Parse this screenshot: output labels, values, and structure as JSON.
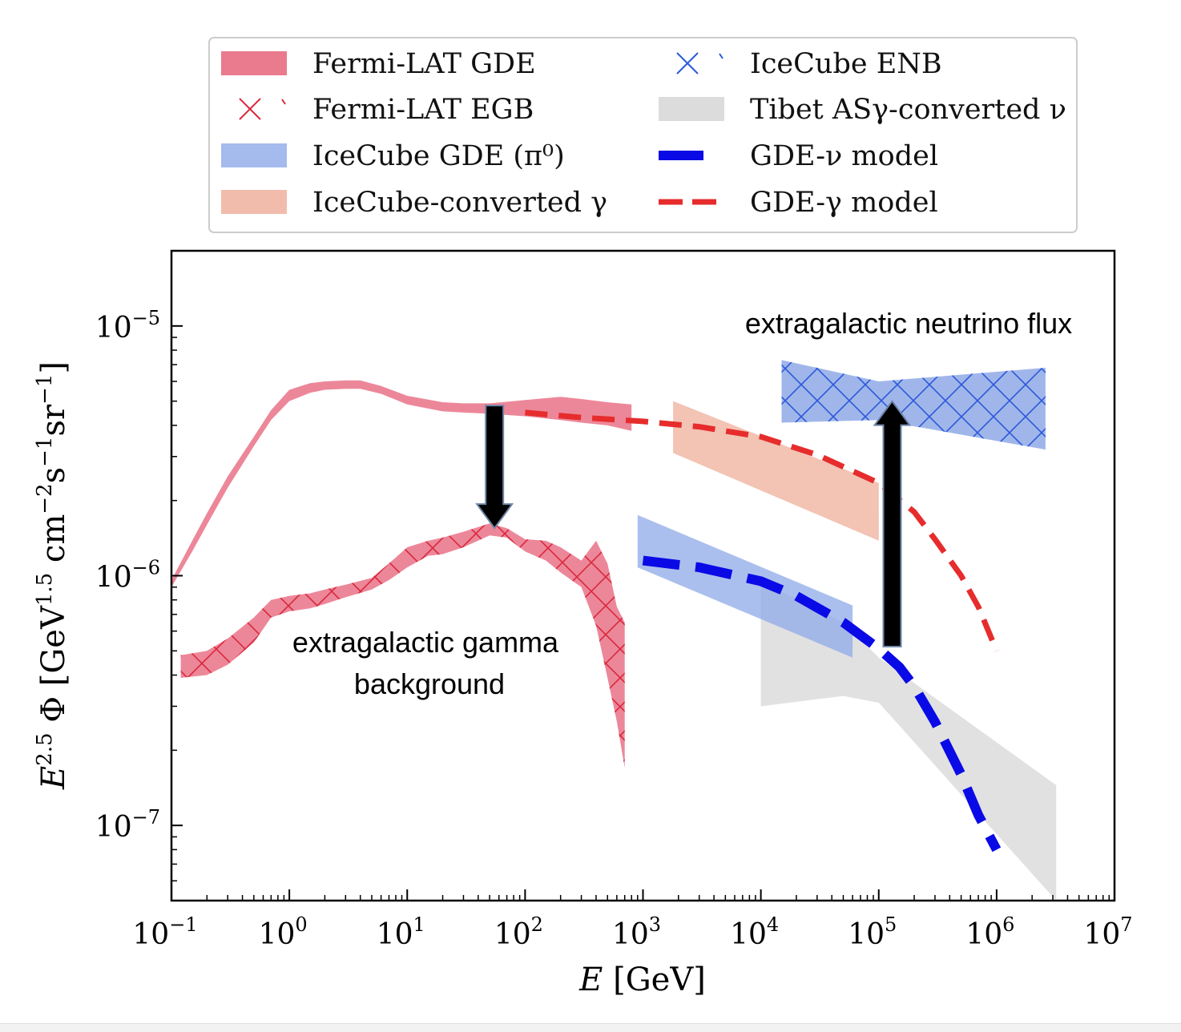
{
  "chart_data": {
    "type": "area",
    "xscale": "log",
    "yscale": "log",
    "xlim": [
      0.1,
      10000000
    ],
    "ylim": [
      5e-08,
      2e-05
    ],
    "xlabel": "E [GeV]",
    "ylabel": "E^{2.5} Φ [GeV^{1.5} cm^{-2} s^{-1} sr^{-1}]",
    "x_ticks": [
      {
        "base": "10",
        "exp": "−1"
      },
      {
        "base": "10",
        "exp": "0"
      },
      {
        "base": "10",
        "exp": "1"
      },
      {
        "base": "10",
        "exp": "2"
      },
      {
        "base": "10",
        "exp": "3"
      },
      {
        "base": "10",
        "exp": "4"
      },
      {
        "base": "10",
        "exp": "5"
      },
      {
        "base": "10",
        "exp": "6"
      },
      {
        "base": "10",
        "exp": "7"
      }
    ],
    "y_ticks": [
      {
        "base": "10",
        "exp": "−7"
      },
      {
        "base": "10",
        "exp": "−6"
      },
      {
        "base": "10",
        "exp": "−5"
      }
    ],
    "legend": [
      {
        "label": "Fermi-LAT GDE",
        "color": "#ea7a8e",
        "kind": "band"
      },
      {
        "label": "Fermi-LAT EGB",
        "color": "#d9283c",
        "kind": "hatch"
      },
      {
        "label": "IceCube GDE (π⁰)",
        "color": "#8fa9e8",
        "kind": "band"
      },
      {
        "label": "IceCube-converted γ",
        "color": "#f2bcac",
        "kind": "band"
      },
      {
        "label": "IceCube ENB",
        "color": "#2a5ad8",
        "kind": "hatch"
      },
      {
        "label": "Tibet ASγ-converted ν",
        "color": "#dcdcdc",
        "kind": "band"
      },
      {
        "label": "GDE-ν model",
        "color": "#0a0ae6",
        "kind": "dashed"
      },
      {
        "label": "GDE-γ model",
        "color": "#e62c2c",
        "kind": "dashed"
      }
    ],
    "series": [
      {
        "name": "Fermi-LAT GDE",
        "kind": "band",
        "color": "#ea7a8e",
        "x": [
          0.1,
          0.15,
          0.2,
          0.3,
          0.5,
          0.7,
          1,
          1.5,
          2,
          3,
          4,
          6,
          10,
          20,
          30,
          50,
          100,
          200,
          300,
          500,
          800
        ],
        "lower": [
          9e-07,
          1.25e-06,
          1.6e-06,
          2.25e-06,
          3.3e-06,
          4.2e-06,
          5e-06,
          5.4e-06,
          5.55e-06,
          5.6e-06,
          5.6e-06,
          5.35e-06,
          4.85e-06,
          4.55e-06,
          4.5e-06,
          4.45e-06,
          4.35e-06,
          4.2e-06,
          4.1e-06,
          4e-06,
          3.8e-06
        ],
        "upper": [
          9.6e-07,
          1.38e-06,
          1.78e-06,
          2.5e-06,
          3.6e-06,
          4.6e-06,
          5.55e-06,
          5.9e-06,
          6e-06,
          6.05e-06,
          6.05e-06,
          5.75e-06,
          5.25e-06,
          4.95e-06,
          4.9e-06,
          4.9e-06,
          5.05e-06,
          5.2e-06,
          5.1e-06,
          4.95e-06,
          4.85e-06
        ]
      },
      {
        "name": "Fermi-LAT EGB",
        "kind": "hatch",
        "color": "#d9283c",
        "x": [
          0.12,
          0.2,
          0.3,
          0.5,
          0.7,
          1,
          1.5,
          2,
          3,
          5,
          7,
          10,
          15,
          20,
          30,
          50,
          70,
          100,
          150,
          200,
          300,
          400,
          500,
          600,
          700
        ],
        "lower": [
          3.9e-07,
          4e-07,
          4.4e-07,
          5.4e-07,
          6.8e-07,
          7.2e-07,
          7.4e-07,
          7.7e-07,
          8.2e-07,
          8.8e-07,
          9.6e-07,
          1.08e-06,
          1.2e-06,
          1.22e-06,
          1.3e-06,
          1.45e-06,
          1.42e-06,
          1.25e-06,
          1.15e-06,
          1.03e-06,
          9e-07,
          6.3e-07,
          3.9e-07,
          2.6e-07,
          1.7e-07
        ],
        "upper": [
          4.8e-07,
          5e-07,
          5.6e-07,
          6.8e-07,
          8e-07,
          8.3e-07,
          8.5e-07,
          8.8e-07,
          9.2e-07,
          9.8e-07,
          1.12e-06,
          1.3e-06,
          1.38e-06,
          1.42e-06,
          1.5e-06,
          1.62e-06,
          1.55e-06,
          1.4e-06,
          1.38e-06,
          1.3e-06,
          1.15e-06,
          1.38e-06,
          1.12e-06,
          7.5e-07,
          6.5e-07
        ]
      },
      {
        "name": "IceCube GDE (π⁰)",
        "kind": "band",
        "color": "#8fa9e8",
        "x": [
          900,
          60000
        ],
        "lower": [
          1.08e-06,
          4.7e-07
        ],
        "upper": [
          1.75e-06,
          7.6e-07
        ]
      },
      {
        "name": "IceCube-converted γ",
        "kind": "band",
        "color": "#f2bcac",
        "x": [
          1800,
          100000
        ],
        "lower": [
          3.1e-06,
          1.38e-06
        ],
        "upper": [
          5e-06,
          2.35e-06
        ]
      },
      {
        "name": "Tibet ASγ-converted ν",
        "kind": "band",
        "color": "#dcdcdc",
        "x": [
          10000,
          50000,
          100000,
          3200000
        ],
        "lower": [
          3e-07,
          3.3e-07,
          3.1e-07,
          5e-08
        ],
        "upper": [
          9.5e-07,
          6.5e-07,
          4.7e-07,
          1.45e-07
        ]
      },
      {
        "name": "IceCube ENB",
        "kind": "hatch",
        "color": "#2a5ad8",
        "x": [
          15000,
          100000,
          2600000
        ],
        "lower": [
          4.1e-06,
          4.2e-06,
          3.2e-06
        ],
        "upper": [
          7.3e-06,
          6e-06,
          6.8e-06
        ]
      },
      {
        "name": "GDE-γ model",
        "kind": "dashed",
        "color": "#e62c2c",
        "x": [
          100,
          300,
          1000,
          3000,
          10000,
          30000,
          100000,
          200000,
          300000,
          500000,
          700000,
          1000000
        ],
        "y": [
          4.5e-06,
          4.3e-06,
          4.15e-06,
          3.95e-06,
          3.6e-06,
          3.05e-06,
          2.35e-06,
          1.8e-06,
          1.4e-06,
          1e-06,
          7.5e-07,
          5e-07
        ]
      },
      {
        "name": "GDE-ν model",
        "kind": "dashed",
        "color": "#0a0ae6",
        "x": [
          1000,
          3000,
          10000,
          20000,
          50000,
          100000,
          150000,
          200000,
          300000,
          500000,
          700000,
          1000000
        ],
        "y": [
          1.15e-06,
          1.08e-06,
          9.5e-07,
          8.3e-07,
          6.5e-07,
          5.1e-07,
          4.3e-07,
          3.6e-07,
          2.6e-07,
          1.6e-07,
          1.1e-07,
          8e-08
        ]
      }
    ],
    "arrows": [
      {
        "name": "egb-arrow",
        "x": 55,
        "y_from": 4.8e-06,
        "y_to": 1.55e-06,
        "direction": "down"
      },
      {
        "name": "enb-arrow",
        "x": 130000,
        "y_from": 5.2e-07,
        "y_to": 5e-06,
        "direction": "up"
      }
    ],
    "annotations": [
      {
        "name": "egb-annotation",
        "lines": [
          "extragalactic gamma",
          "background"
        ]
      },
      {
        "name": "enb-annotation",
        "lines": [
          "extragalactic neutrino flux"
        ]
      }
    ]
  }
}
